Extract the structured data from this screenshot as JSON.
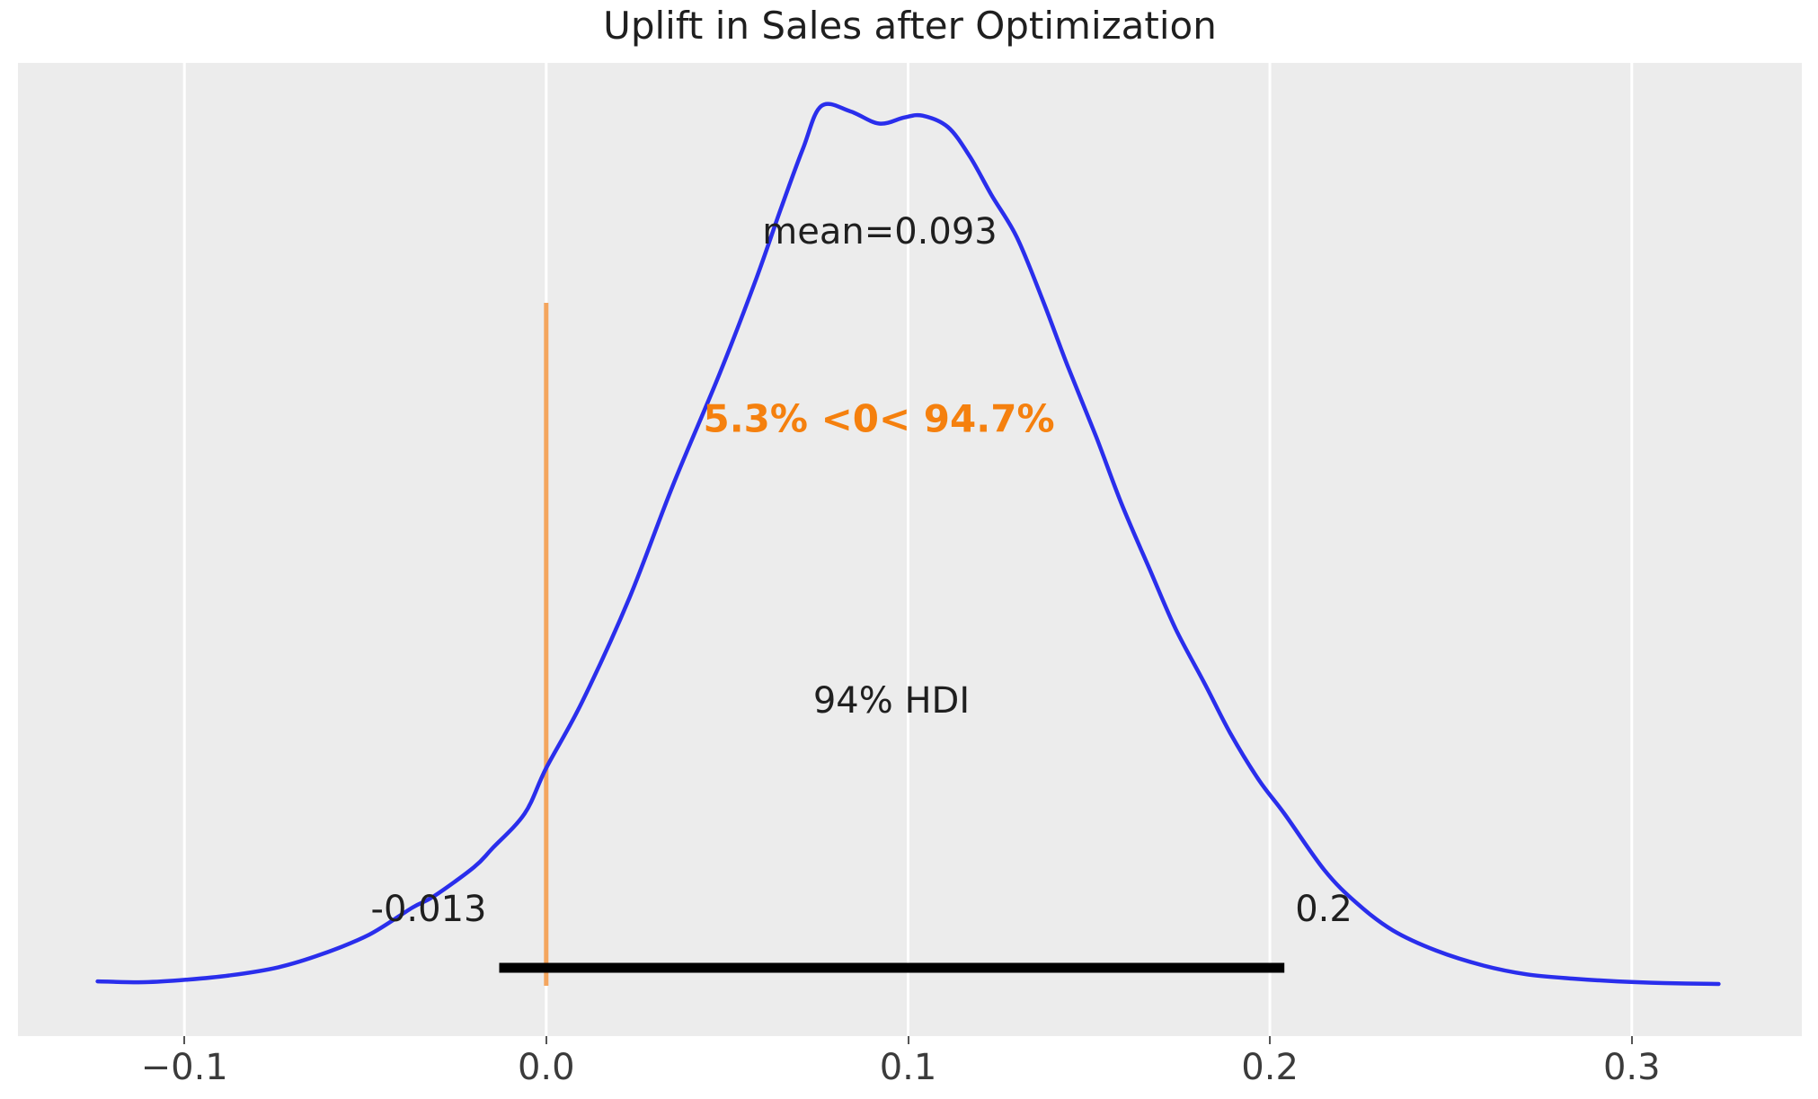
{
  "title": "Uplift in Sales after Optimization",
  "annotations": {
    "mean_label": "mean=0.093",
    "ref_val_label": "5.3% <0< 94.7%",
    "hdi_label": "94% HDI",
    "hdi_low_label": "-0.013",
    "hdi_high_label": "0.2"
  },
  "colors": {
    "curve": "#2a2eec",
    "ref_line": "#f4a55e",
    "ref_text": "#f5800e",
    "hdi_line": "#000000",
    "plot_bg": "#ececec",
    "grid": "#ffffff",
    "text": "#1f1f1f",
    "tick": "#555555"
  },
  "chart_data": {
    "type": "line",
    "subtype": "posterior-density-kde",
    "title": "Uplift in Sales after Optimization",
    "xlabel": "",
    "ylabel": "",
    "xlim": [
      -0.146,
      0.347
    ],
    "grid": "vertical white gridlines on gray panel",
    "legend": "none",
    "xticks": [
      {
        "value": -0.1,
        "label": "−0.1"
      },
      {
        "value": 0.0,
        "label": "0.0"
      },
      {
        "value": 0.1,
        "label": "0.1"
      },
      {
        "value": 0.2,
        "label": "0.2"
      },
      {
        "value": 0.3,
        "label": "0.3"
      }
    ],
    "series": [
      {
        "name": "posterior density (KDE)",
        "x": [
          -0.124,
          -0.111,
          -0.099,
          -0.087,
          -0.074,
          -0.062,
          -0.049,
          -0.037,
          -0.031,
          -0.02,
          -0.015,
          -0.006,
          0.0,
          0.01,
          0.023,
          0.035,
          0.048,
          0.058,
          0.065,
          0.071,
          0.076,
          0.084,
          0.092,
          0.099,
          0.104,
          0.111,
          0.117,
          0.123,
          0.13,
          0.137,
          0.144,
          0.152,
          0.159,
          0.167,
          0.174,
          0.182,
          0.189,
          0.197,
          0.204,
          0.215,
          0.224,
          0.234,
          0.246,
          0.259,
          0.271,
          0.284,
          0.296,
          0.309,
          0.324
        ],
        "y_normalized": [
          0.003,
          0.002,
          0.005,
          0.01,
          0.019,
          0.034,
          0.056,
          0.087,
          0.1,
          0.133,
          0.154,
          0.194,
          0.246,
          0.322,
          0.44,
          0.568,
          0.696,
          0.803,
          0.885,
          0.952,
          1.0,
          0.994,
          0.98,
          0.987,
          0.989,
          0.976,
          0.943,
          0.899,
          0.851,
          0.781,
          0.705,
          0.623,
          0.547,
          0.47,
          0.404,
          0.342,
          0.286,
          0.232,
          0.194,
          0.13,
          0.092,
          0.061,
          0.038,
          0.021,
          0.011,
          0.006,
          0.003,
          0.001,
          0.0
        ]
      }
    ],
    "stats": {
      "mean": 0.093,
      "hdi_interval": "94%",
      "hdi": [
        -0.013,
        0.204
      ],
      "hdi_labels": [
        "-0.013",
        "0.2"
      ],
      "ref_value": 0,
      "pct_below_ref": "5.3%",
      "pct_above_ref": "94.7%"
    }
  }
}
